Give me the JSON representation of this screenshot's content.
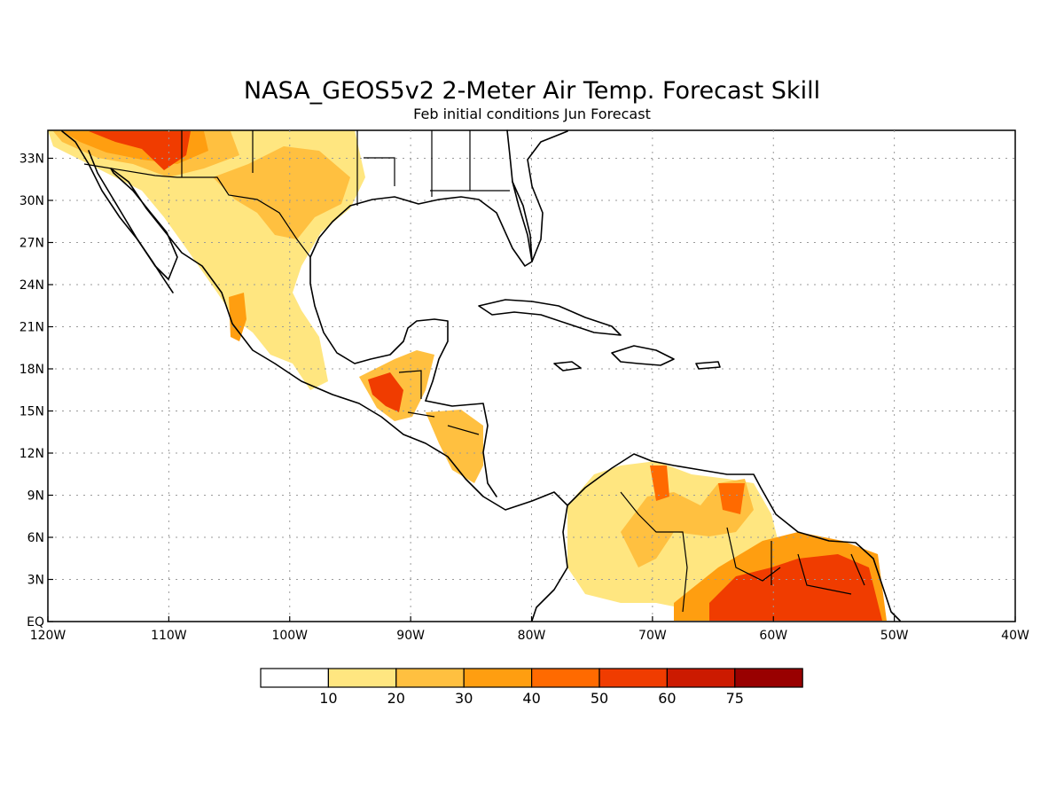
{
  "title": "NASA_GEOS5v2 2-Meter Air Temp. Forecast Skill",
  "subtitle": "Feb initial conditions  Jun Forecast",
  "map": {
    "lon_range": [
      -120,
      -40
    ],
    "lat_range": [
      0,
      35
    ],
    "lon_ticks": [
      "120W",
      "110W",
      "100W",
      "90W",
      "80W",
      "70W",
      "60W",
      "50W",
      "40W"
    ],
    "lat_ticks": [
      "EQ",
      "3N",
      "6N",
      "9N",
      "12N",
      "15N",
      "18N",
      "21N",
      "24N",
      "27N",
      "30N",
      "33N"
    ],
    "grid": true
  },
  "colorbar": {
    "labels": [
      "10",
      "20",
      "30",
      "40",
      "50",
      "60",
      "75"
    ],
    "colors": [
      "#ffffff",
      "#ffe680",
      "#ffc040",
      "#ff9e10",
      "#ff6a00",
      "#f03c00",
      "#cc1a00",
      "#990000"
    ]
  },
  "skill_regions": [
    {
      "name": "northwest-mexico-arizona",
      "level": 1
    },
    {
      "name": "texas-chihuahua",
      "level": 2
    },
    {
      "name": "sierra-madre",
      "level": 1
    },
    {
      "name": "guatemala",
      "level": 4
    },
    {
      "name": "honduras-nicaragua",
      "level": 2
    },
    {
      "name": "colombia-venezuela",
      "level": 2
    },
    {
      "name": "guianas-northern-brazil",
      "level": 5
    }
  ]
}
